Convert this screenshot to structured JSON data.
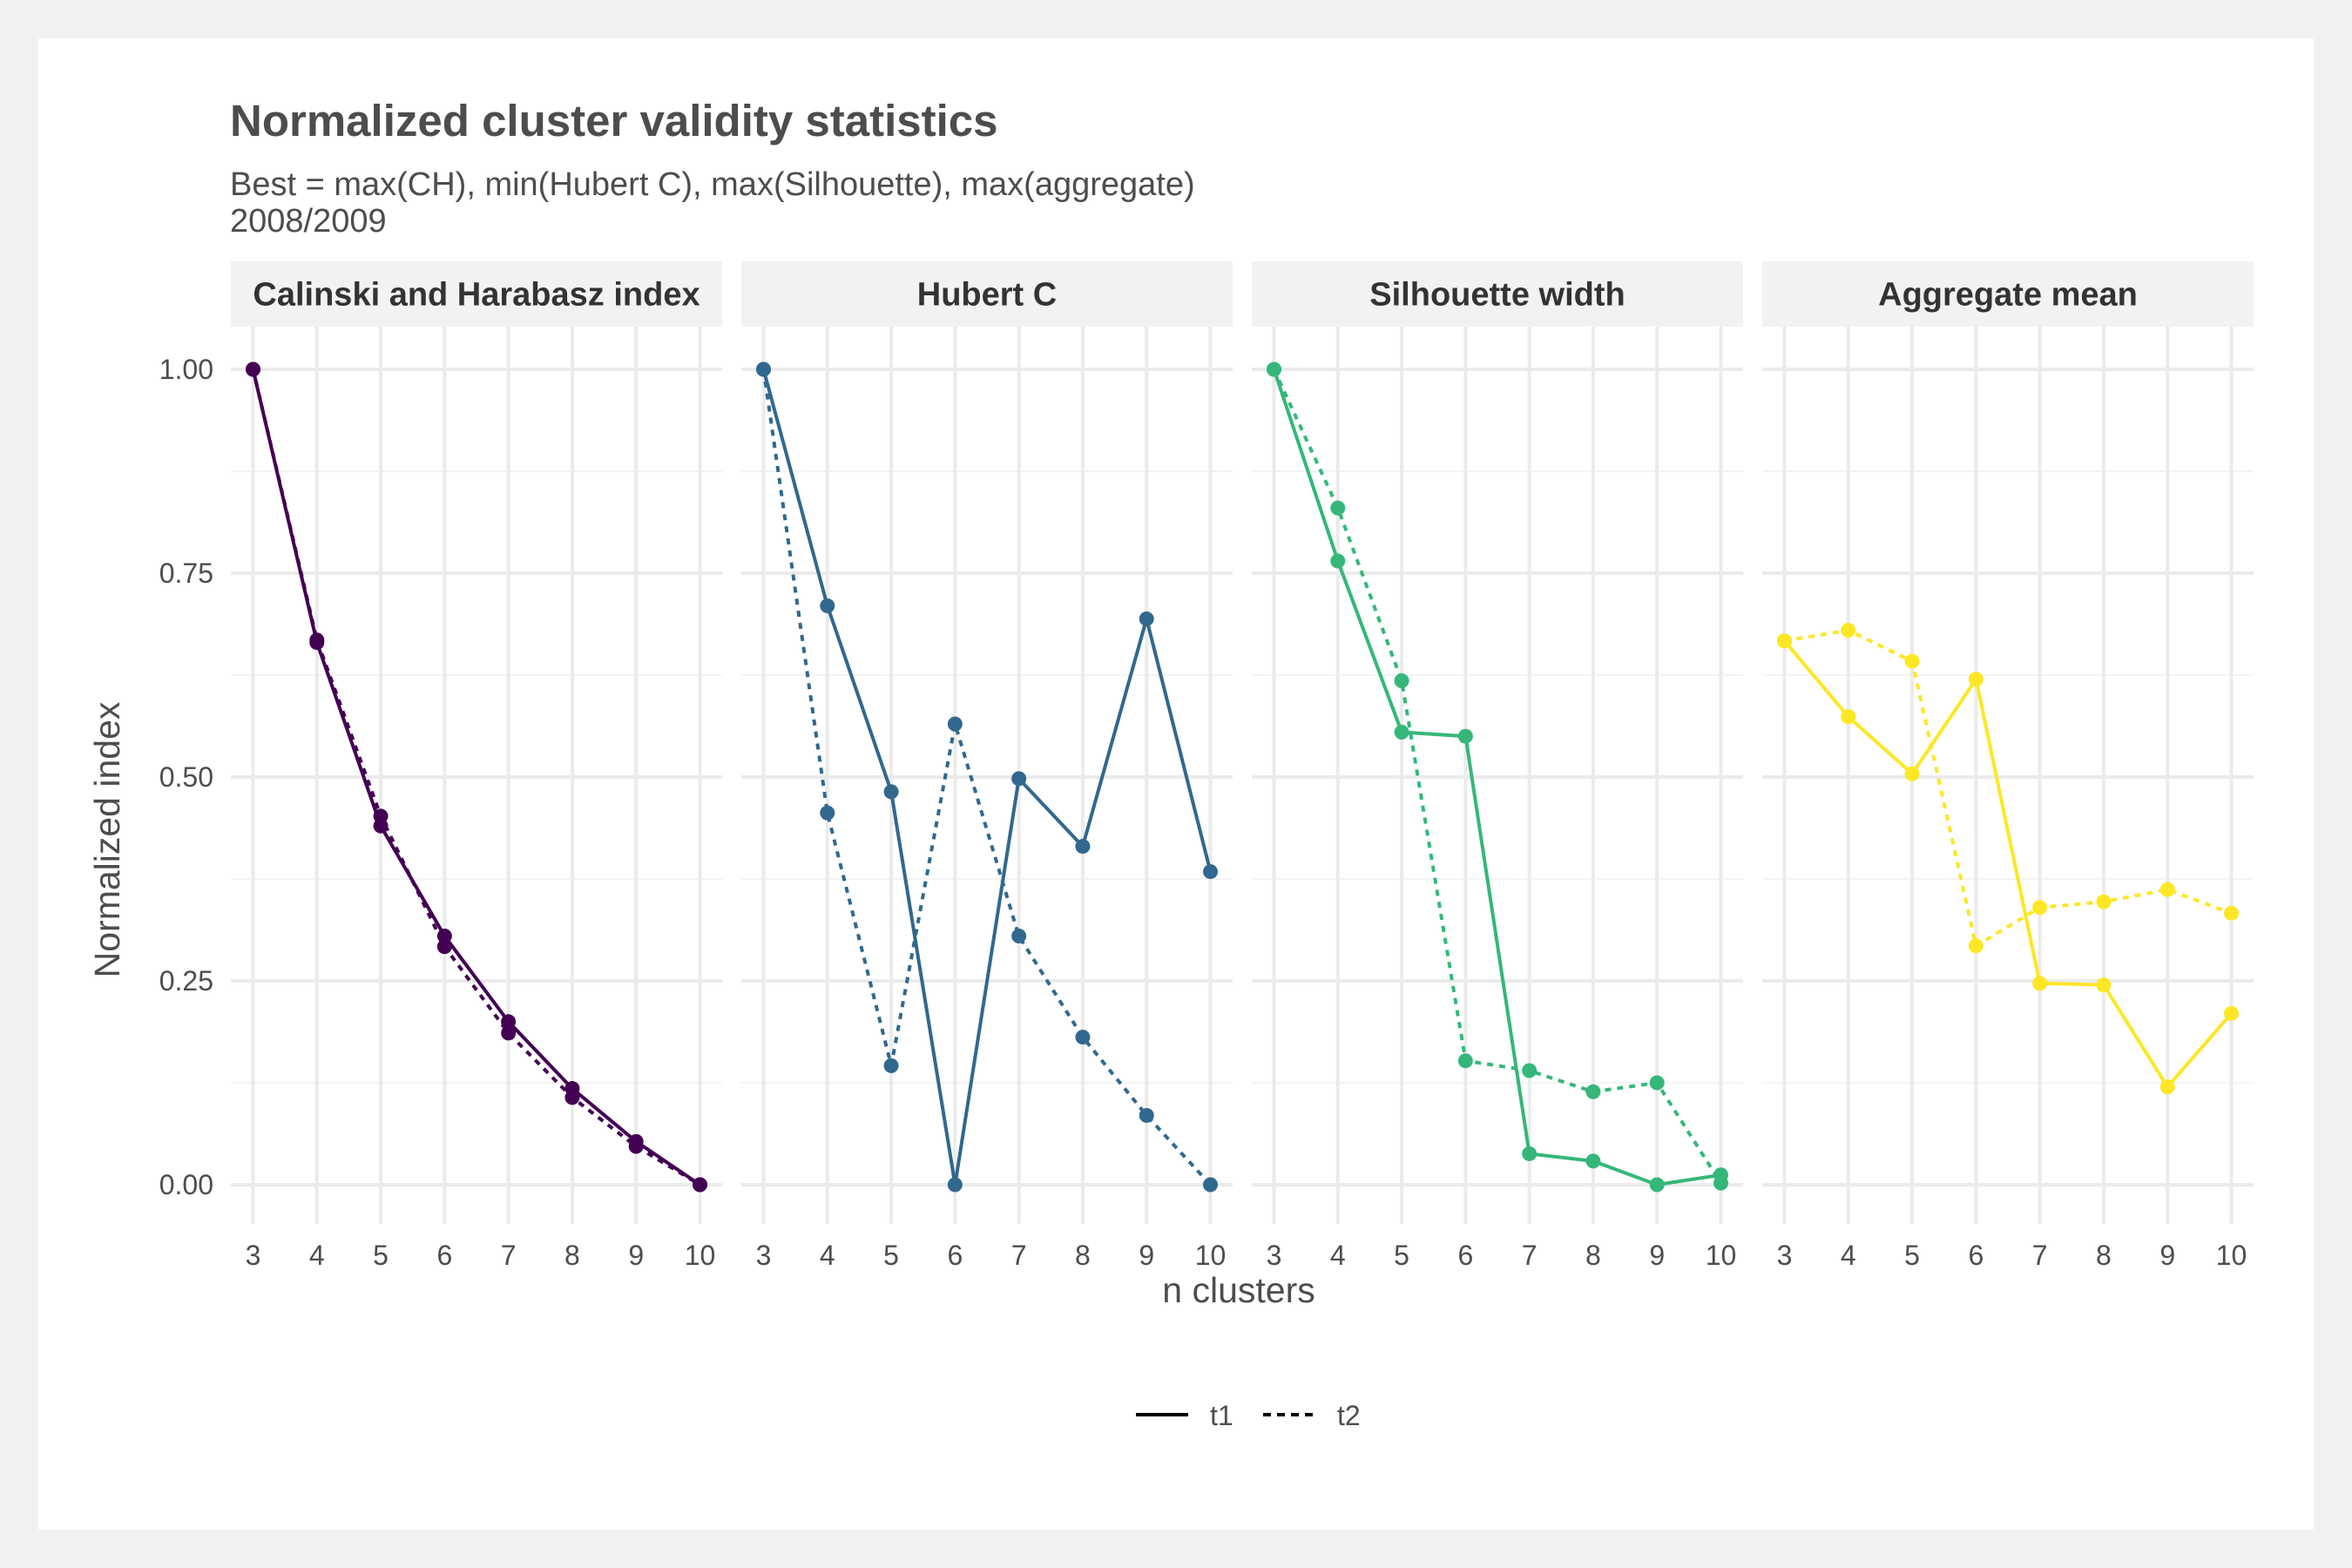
{
  "chart_data": {
    "type": "line",
    "title": "Normalized cluster validity statistics",
    "subtitle": "Best = max(CH), min(Hubert C), max(Silhouette), max(aggregate)",
    "caption_line": "2008/2009",
    "xlabel": "n clusters",
    "ylabel": "Normalized index",
    "x": [
      3,
      4,
      5,
      6,
      7,
      8,
      9,
      10
    ],
    "ylim": [
      0,
      1
    ],
    "y_ticks": [
      0,
      0.25,
      0.5,
      0.75,
      1
    ],
    "y_tick_labels": [
      "0.00",
      "0.25",
      "0.50",
      "0.75",
      "1.00"
    ],
    "grid": true,
    "legend_position": "bottom",
    "legend": [
      {
        "name": "t1",
        "linetype": "solid"
      },
      {
        "name": "t2",
        "linetype": "dashed"
      }
    ],
    "panels": [
      {
        "title": "Calinski and Harabasz index",
        "color": "#440154",
        "series": [
          {
            "name": "t1",
            "values": [
              1.0,
              0.665,
              0.44,
              0.305,
              0.2,
              0.118,
              0.053,
              0.0
            ]
          },
          {
            "name": "t2",
            "values": [
              1.0,
              0.668,
              0.452,
              0.292,
              0.186,
              0.107,
              0.047,
              0.0
            ]
          }
        ]
      },
      {
        "title": "Hubert C",
        "color": "#31688e",
        "series": [
          {
            "name": "t1",
            "values": [
              1.0,
              0.71,
              0.482,
              0.0,
              0.498,
              0.415,
              0.694,
              0.384
            ]
          },
          {
            "name": "t2",
            "values": [
              1.0,
              0.456,
              0.146,
              0.565,
              0.305,
              0.181,
              0.085,
              0.0
            ]
          }
        ]
      },
      {
        "title": "Silhouette width",
        "color": "#35b779",
        "series": [
          {
            "name": "t1",
            "values": [
              1.0,
              0.765,
              0.555,
              0.55,
              0.038,
              0.029,
              0.0,
              0.012
            ]
          },
          {
            "name": "t2",
            "values": [
              1.0,
              0.83,
              0.618,
              0.152,
              0.14,
              0.114,
              0.125,
              0.002
            ]
          }
        ]
      },
      {
        "title": "Aggregate mean",
        "color": "#fde725",
        "series": [
          {
            "name": "t1",
            "values": [
              0.667,
              0.574,
              0.504,
              0.62,
              0.247,
              0.245,
              0.12,
              0.21
            ]
          },
          {
            "name": "t2",
            "values": [
              0.667,
              0.68,
              0.642,
              0.293,
              0.34,
              0.347,
              0.362,
              0.333
            ]
          }
        ]
      }
    ]
  }
}
